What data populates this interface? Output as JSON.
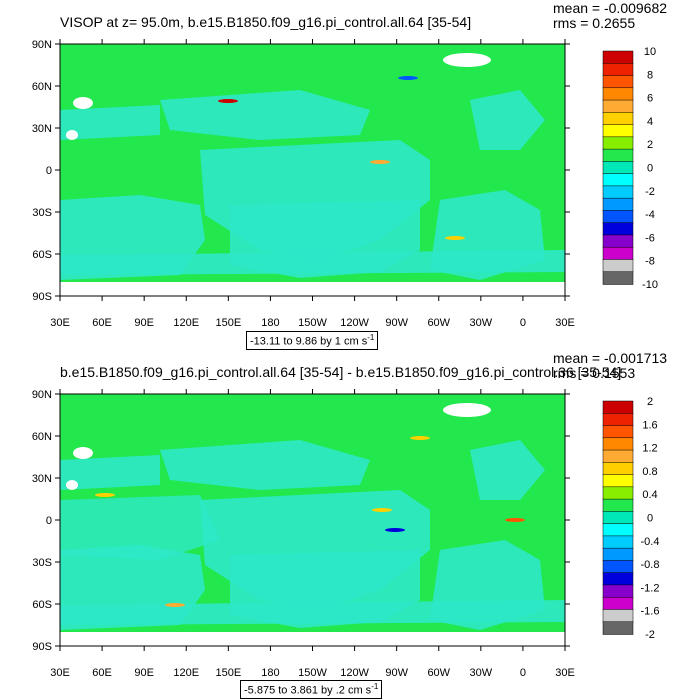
{
  "panels": [
    {
      "title": "VISOP at z=  95.0m, b.e15.B1850.f09_g16.pi_control.all.64 [35-54]",
      "mean": "mean = -0.009682",
      "rms": "rms = 0.2655",
      "range": "-13.11 to 9.86 by 1 cm s",
      "range_sup": "-1",
      "colorbar_labels": [
        "10",
        "8",
        "6",
        "4",
        "2",
        "0",
        "-2",
        "-4",
        "-6",
        "-8",
        "-10"
      ]
    },
    {
      "title": "b.e15.B1850.f09_g16.pi_control.all.64 [35-54] - b.e15.B1850.f09_g16.pi_control.36 [35-54]",
      "mean": "mean = -0.001713",
      "rms": "rms = 0.1553",
      "range": "-5.875 to 3.861 by .2 cm s",
      "range_sup": "-1",
      "colorbar_labels": [
        "2",
        "1.6",
        "1.2",
        "0.8",
        "0.4",
        "0",
        "-0.4",
        "-0.8",
        "-1.2",
        "-1.6",
        "-2"
      ]
    }
  ],
  "y_ticks": [
    "90N",
    "60N",
    "30N",
    "0",
    "30S",
    "60S",
    "90S"
  ],
  "x_ticks": [
    "30E",
    "60E",
    "90E",
    "120E",
    "150E",
    "180",
    "150W",
    "120W",
    "90W",
    "60W",
    "30W",
    "0",
    "30E"
  ],
  "colors": {
    "background_green": "#22e84e",
    "ocean_cyan": "#2ee8c8",
    "colorbar": [
      "#cc0000",
      "#ee2200",
      "#ff5500",
      "#ff8800",
      "#ffaa33",
      "#ffd000",
      "#ffff00",
      "#88ee00",
      "#22e84e",
      "#00e8b8",
      "#00ffff",
      "#00ccff",
      "#0099ff",
      "#0055ff",
      "#0000dd",
      "#8800cc",
      "#cc00cc",
      "#cccccc",
      "#666666"
    ]
  }
}
